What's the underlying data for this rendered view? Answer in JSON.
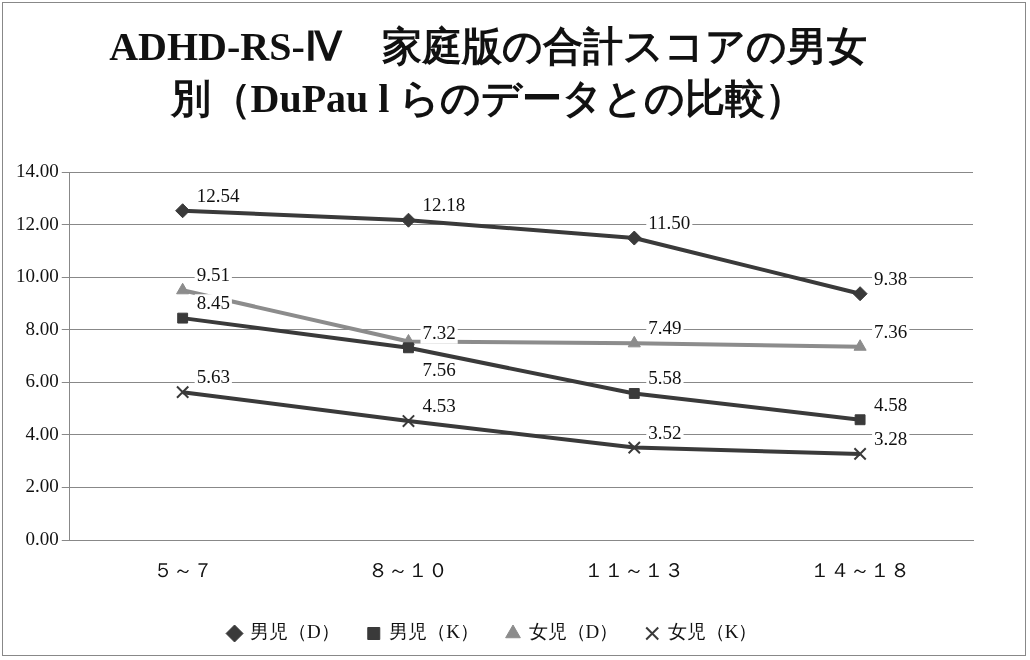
{
  "chart_data": {
    "type": "line",
    "title": "ADHD-RS-Ⅳ　家庭版の合計スコアの男女別（DuPau l らのデータとの比較）",
    "categories": [
      "５～７",
      "８～１０",
      "１１～１３",
      "１４～１８"
    ],
    "series": [
      {
        "name": "男児（D）",
        "color": "#3a3a3a",
        "marker": "diamond",
        "values": [
          12.54,
          12.18,
          11.5,
          9.38
        ],
        "value_labels": [
          "12.54",
          "12.18",
          "11.50",
          "9.38"
        ]
      },
      {
        "name": "男児（K）",
        "color": "#3a3a3a",
        "marker": "square",
        "values": [
          8.45,
          7.32,
          5.58,
          4.58
        ],
        "value_labels": [
          "8.45",
          "7.32",
          "5.58",
          "4.58"
        ]
      },
      {
        "name": "女児（D）",
        "color": "#8c8c8c",
        "marker": "triangle",
        "values": [
          9.51,
          7.56,
          7.49,
          7.36
        ],
        "value_labels": [
          "9.51",
          "7.56",
          "7.49",
          "7.36"
        ]
      },
      {
        "name": "女児（K）",
        "color": "#3a3a3a",
        "marker": "cross",
        "values": [
          5.63,
          4.53,
          3.52,
          3.28
        ],
        "value_labels": [
          "5.63",
          "4.53",
          "3.52",
          "3.28"
        ]
      }
    ],
    "ylim": [
      0,
      14
    ],
    "yticks": [
      {
        "value": 0,
        "label": "0.00"
      },
      {
        "value": 2,
        "label": "2.00"
      },
      {
        "value": 4,
        "label": "4.00"
      },
      {
        "value": 6,
        "label": "6.00"
      },
      {
        "value": 8,
        "label": "8.00"
      },
      {
        "value": 10,
        "label": "10.00"
      },
      {
        "value": 12,
        "label": "12.00"
      },
      {
        "value": 14,
        "label": "14.00"
      }
    ],
    "grid": "y",
    "legend": "bottom"
  }
}
